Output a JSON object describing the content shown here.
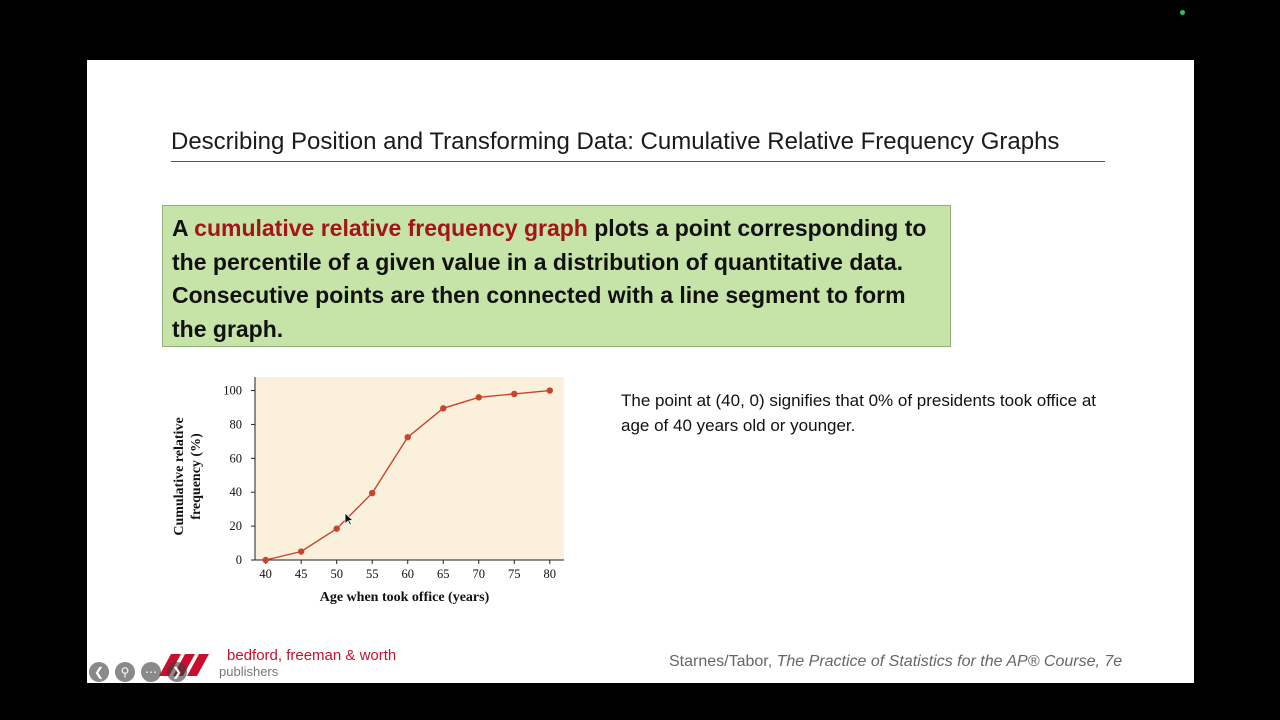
{
  "slide": {
    "title": "Describing Position and Transforming Data: Cumulative Relative Frequency Graphs",
    "definition": {
      "prefix": "A ",
      "term": "cumulative relative frequency graph",
      "rest": " plots a point corresponding to the percentile of a given value in a distribution of quantitative data.  Consecutive points are then connected with a line segment to form the graph."
    },
    "note": "The point at (40, 0) signifies that 0% of presidents took office at age of 40 years old or younger.",
    "publisher": {
      "name": "bedford, freeman & worth",
      "sub": "publishers"
    },
    "citation": {
      "authors": "Starnes/Tabor, ",
      "book": "The Practice of Statistics for the AP® Course, 7e"
    }
  },
  "colors": {
    "box_bg": "#c6e3a8",
    "term": "#a3141b",
    "plot_bg": "#fbf0dc",
    "line": "#c8452d"
  },
  "icons": [
    "prev-arrow-icon",
    "search-icon",
    "more-icon",
    "next-arrow-icon",
    "cursor-icon",
    "bfw-logo-icon"
  ],
  "chart_data": {
    "type": "line",
    "x": [
      40,
      45,
      50,
      55,
      60,
      65,
      70,
      75,
      80
    ],
    "y": [
      0,
      5,
      18.5,
      39.5,
      72.5,
      89.5,
      96,
      98,
      100
    ],
    "xticks": [
      "40",
      "45",
      "50",
      "55",
      "60",
      "65",
      "70",
      "75",
      "80"
    ],
    "yticks": [
      "0",
      "20",
      "40",
      "60",
      "80",
      "100"
    ],
    "xlabel": "Age when took office (years)",
    "ylabel": "Cumulative relative frequency (%)",
    "ylabel_lines": [
      "Cumulative relative",
      "frequency (%)"
    ],
    "xlim": [
      38.5,
      82
    ],
    "ylim": [
      0,
      108
    ],
    "grid": false
  }
}
